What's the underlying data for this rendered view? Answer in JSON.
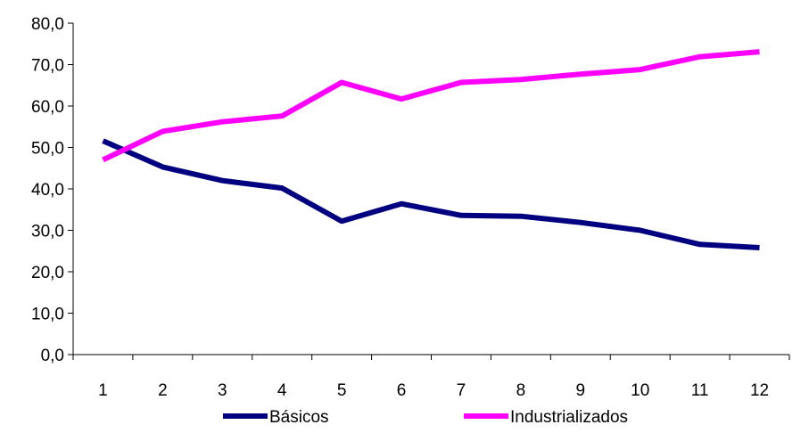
{
  "chart_data": {
    "type": "line",
    "title": "",
    "xlabel": "",
    "ylabel": "",
    "categories": [
      "1",
      "2",
      "3",
      "4",
      "5",
      "6",
      "7",
      "8",
      "9",
      "10",
      "11",
      "12"
    ],
    "ylim": [
      0,
      80
    ],
    "yticks": [
      "0,0",
      "10,0",
      "20,0",
      "30,0",
      "40,0",
      "50,0",
      "60,0",
      "70,0",
      "80,0"
    ],
    "grid": false,
    "legend_position": "bottom",
    "series": [
      {
        "name": "Básicos",
        "color": "#000080",
        "values": [
          51.6,
          45.3,
          42.0,
          40.2,
          32.2,
          36.4,
          33.6,
          33.4,
          31.9,
          30.0,
          26.6,
          25.8
        ]
      },
      {
        "name": "Industrializados",
        "color": "#FF00FF",
        "values": [
          47.0,
          53.9,
          56.2,
          57.6,
          65.7,
          61.7,
          65.7,
          66.4,
          67.7,
          68.8,
          71.9,
          73.1
        ]
      }
    ]
  }
}
